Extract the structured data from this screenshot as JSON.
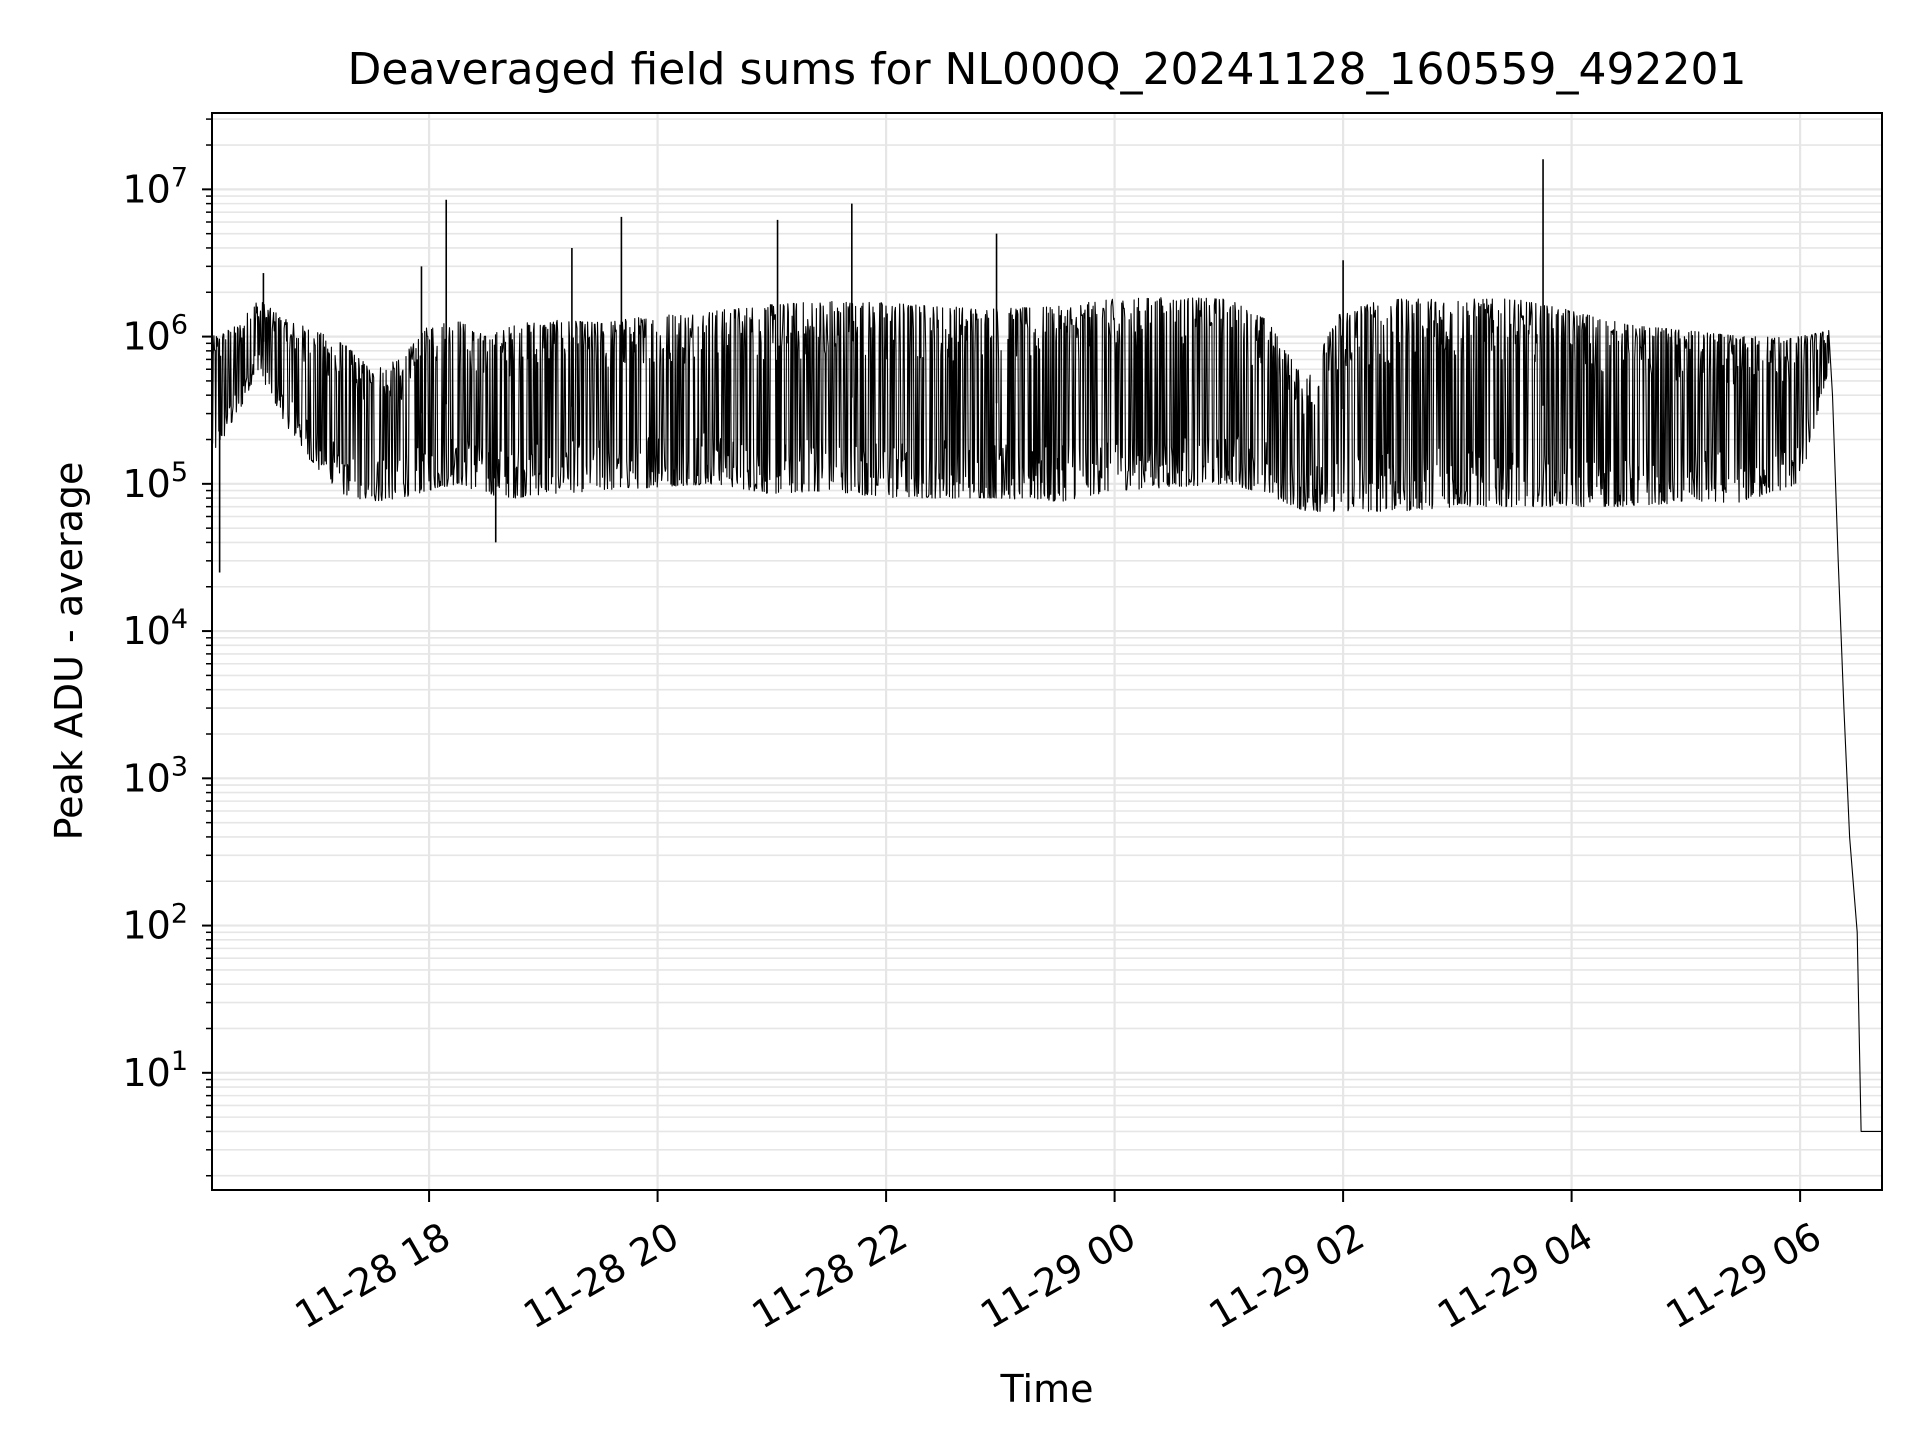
{
  "chart_data": {
    "type": "line",
    "title": "Deaveraged field sums for NL000Q_20241128_160559_492201",
    "xlabel": "Time",
    "ylabel": "Peak ADU - average",
    "yscale": "log",
    "ylim": [
      1.6,
      33000000
    ],
    "xlim": [
      "2024-11-28 16:06",
      "2024-11-29 06:43"
    ],
    "grid": true,
    "line_color": "#000000",
    "grid_color": "#e6e6e6",
    "x_ticks": [
      {
        "x": "2024-11-28 18:00",
        "label": "11-28 18"
      },
      {
        "x": "2024-11-28 20:00",
        "label": "11-28 20"
      },
      {
        "x": "2024-11-28 22:00",
        "label": "11-28 22"
      },
      {
        "x": "2024-11-29 00:00",
        "label": "11-29 00"
      },
      {
        "x": "2024-11-29 02:00",
        "label": "11-29 02"
      },
      {
        "x": "2024-11-29 04:00",
        "label": "11-29 04"
      },
      {
        "x": "2024-11-29 06:00",
        "label": "11-29 06"
      }
    ],
    "y_ticks": [
      {
        "value": 10,
        "base": "10",
        "exp": "1"
      },
      {
        "value": 100,
        "base": "10",
        "exp": "2"
      },
      {
        "value": 1000,
        "base": "10",
        "exp": "3"
      },
      {
        "value": 10000,
        "base": "10",
        "exp": "4"
      },
      {
        "value": 100000,
        "base": "10",
        "exp": "5"
      },
      {
        "value": 1000000,
        "base": "10",
        "exp": "6"
      },
      {
        "value": 10000000,
        "base": "10",
        "exp": "7"
      }
    ],
    "series": [
      {
        "envelope": [
          {
            "x": "2024-11-28 16:06",
            "low": 150000,
            "high": 1000000
          },
          {
            "x": "2024-11-28 16:20",
            "low": 300000,
            "high": 1200000
          },
          {
            "x": "2024-11-28 16:30",
            "low": 600000,
            "high": 1800000
          },
          {
            "x": "2024-11-28 16:45",
            "low": 250000,
            "high": 1300000
          },
          {
            "x": "2024-11-28 17:00",
            "low": 130000,
            "high": 1100000
          },
          {
            "x": "2024-11-28 17:15",
            "low": 85000,
            "high": 900000
          },
          {
            "x": "2024-11-28 17:30",
            "low": 75000,
            "high": 600000
          },
          {
            "x": "2024-11-28 17:45",
            "low": 80000,
            "high": 700000
          },
          {
            "x": "2024-11-28 18:00",
            "low": 90000,
            "high": 1200000
          },
          {
            "x": "2024-11-28 18:15",
            "low": 100000,
            "high": 1300000
          },
          {
            "x": "2024-11-28 18:30",
            "low": 85000,
            "high": 1000000
          },
          {
            "x": "2024-11-28 18:45",
            "low": 80000,
            "high": 1200000
          },
          {
            "x": "2024-11-28 19:00",
            "low": 85000,
            "high": 1300000
          },
          {
            "x": "2024-11-28 19:30",
            "low": 90000,
            "high": 1250000
          },
          {
            "x": "2024-11-28 20:00",
            "low": 95000,
            "high": 1400000
          },
          {
            "x": "2024-11-28 20:30",
            "low": 100000,
            "high": 1500000
          },
          {
            "x": "2024-11-28 21:00",
            "low": 85000,
            "high": 1650000
          },
          {
            "x": "2024-11-28 21:30",
            "low": 90000,
            "high": 1750000
          },
          {
            "x": "2024-11-28 22:00",
            "low": 80000,
            "high": 1700000
          },
          {
            "x": "2024-11-28 22:30",
            "low": 80000,
            "high": 1600000
          },
          {
            "x": "2024-11-28 23:00",
            "low": 80000,
            "high": 1550000
          },
          {
            "x": "2024-11-28 23:30",
            "low": 75000,
            "high": 1600000
          },
          {
            "x": "2024-11-29 00:00",
            "low": 90000,
            "high": 1800000
          },
          {
            "x": "2024-11-29 00:30",
            "low": 95000,
            "high": 1850000
          },
          {
            "x": "2024-11-29 01:00",
            "low": 100000,
            "high": 1800000
          },
          {
            "x": "2024-11-29 01:20",
            "low": 85000,
            "high": 1300000
          },
          {
            "x": "2024-11-29 01:40",
            "low": 65000,
            "high": 500000
          },
          {
            "x": "2024-11-29 02:00",
            "low": 65000,
            "high": 1600000
          },
          {
            "x": "2024-11-29 02:30",
            "low": 65000,
            "high": 1800000
          },
          {
            "x": "2024-11-29 03:00",
            "low": 70000,
            "high": 1800000
          },
          {
            "x": "2024-11-29 03:30",
            "low": 70000,
            "high": 1800000
          },
          {
            "x": "2024-11-29 04:00",
            "low": 70000,
            "high": 1500000
          },
          {
            "x": "2024-11-29 04:30",
            "low": 70000,
            "high": 1200000
          },
          {
            "x": "2024-11-29 05:00",
            "low": 75000,
            "high": 1100000
          },
          {
            "x": "2024-11-29 05:30",
            "low": 75000,
            "high": 1000000
          },
          {
            "x": "2024-11-29 06:00",
            "low": 100000,
            "high": 1000000
          },
          {
            "x": "2024-11-29 06:15",
            "low": 600000,
            "high": 1100000
          }
        ],
        "tail": [
          {
            "x": "2024-11-29 06:15",
            "y": 1100000
          },
          {
            "x": "2024-11-29 06:17",
            "y": 400000
          },
          {
            "x": "2024-11-29 06:20",
            "y": 30000
          },
          {
            "x": "2024-11-29 06:23",
            "y": 3000
          },
          {
            "x": "2024-11-29 06:26",
            "y": 400
          },
          {
            "x": "2024-11-29 06:30",
            "y": 90
          },
          {
            "x": "2024-11-29 06:32",
            "y": 4
          },
          {
            "x": "2024-11-29 06:43",
            "y": 4
          }
        ],
        "spikes": [
          {
            "x": "2024-11-28 16:10",
            "y": 25000
          },
          {
            "x": "2024-11-28 16:33",
            "y": 2700000
          },
          {
            "x": "2024-11-28 17:56",
            "y": 3000000
          },
          {
            "x": "2024-11-28 18:09",
            "y": 8500000
          },
          {
            "x": "2024-11-28 18:35",
            "y": 40000
          },
          {
            "x": "2024-11-28 19:15",
            "y": 4000000
          },
          {
            "x": "2024-11-28 19:41",
            "y": 6500000
          },
          {
            "x": "2024-11-28 21:03",
            "y": 6200000
          },
          {
            "x": "2024-11-28 21:42",
            "y": 8000000
          },
          {
            "x": "2024-11-28 22:58",
            "y": 5000000
          },
          {
            "x": "2024-11-29 02:00",
            "y": 3300000
          },
          {
            "x": "2024-11-29 03:45",
            "y": 16000000
          }
        ]
      }
    ]
  }
}
